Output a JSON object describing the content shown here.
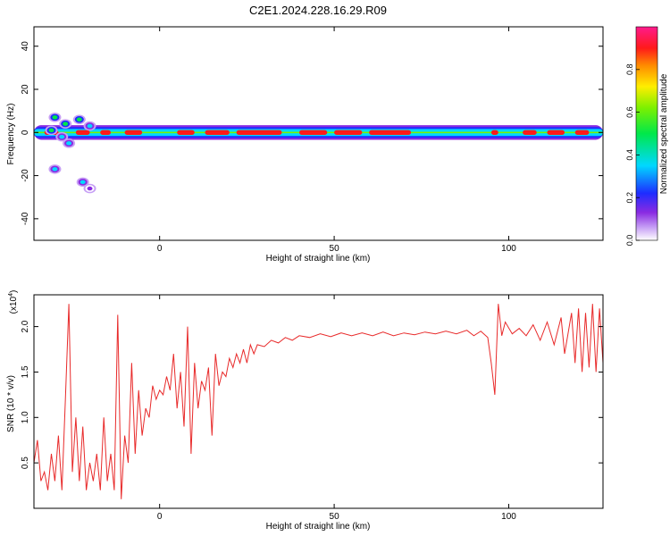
{
  "title": "C2E1.2024.228.16.29.R09",
  "chart_data": [
    {
      "type": "heatmap",
      "xlabel": "Height of straight line (km)",
      "ylabel": "Frequency (Hz)",
      "xlim": [
        -36,
        127
      ],
      "ylim": [
        -50,
        49
      ],
      "xticks": [
        0,
        50,
        100
      ],
      "xtick_labels": [
        "0",
        "50",
        "100"
      ],
      "yticks": [
        -40,
        -20,
        0,
        20,
        40
      ],
      "ytick_labels": [
        "-40",
        "-20",
        "0",
        "20",
        "40"
      ],
      "grid": false,
      "colorbar": {
        "label": "Normalized spectral amplitude",
        "range": [
          0,
          1
        ],
        "ticks": [
          0.0,
          0.2,
          0.4,
          0.6,
          0.8
        ],
        "tick_labels": [
          "0.0",
          "0.2",
          "0.4",
          "0.6",
          "0.8"
        ],
        "colormap": "rainbow (white-purple-blue-cyan-green-yellow-red-magenta)"
      },
      "band": {
        "center_frequency_hz": 0,
        "half_width_hz": 2.5,
        "x_range": [
          -36,
          127
        ],
        "strong_segments_km": [
          [
            -33,
            -29
          ],
          [
            -24,
            -20
          ],
          [
            -17,
            -14
          ],
          [
            -10,
            -5
          ],
          [
            5,
            10
          ],
          [
            13,
            20
          ],
          [
            22,
            35
          ],
          [
            40,
            48
          ],
          [
            50,
            58
          ],
          [
            60,
            72
          ],
          [
            95,
            97
          ],
          [
            104,
            108
          ],
          [
            111,
            116
          ],
          [
            119,
            123
          ]
        ]
      },
      "scattered_blobs": [
        {
          "x": -30,
          "y": 7,
          "amp": 0.6
        },
        {
          "x": -27,
          "y": 4,
          "amp": 0.5
        },
        {
          "x": -31,
          "y": 1,
          "amp": 0.5
        },
        {
          "x": -28,
          "y": -2,
          "amp": 0.4
        },
        {
          "x": -26,
          "y": -5,
          "amp": 0.4
        },
        {
          "x": -23,
          "y": 6,
          "amp": 0.5
        },
        {
          "x": -20,
          "y": 3,
          "amp": 0.4
        },
        {
          "x": -30,
          "y": -17,
          "amp": 0.4
        },
        {
          "x": -22,
          "y": -23,
          "amp": 0.4
        },
        {
          "x": -20,
          "y": -26,
          "amp": 0.15
        }
      ]
    },
    {
      "type": "line",
      "xlabel": "Height of straight line (km)",
      "ylabel": "SNR (10 * v/v)",
      "y_multiplier_label": "(x10",
      "y_multiplier_exponent": "4",
      "y_multiplier_close": ")",
      "xlim": [
        -36,
        127
      ],
      "ylim": [
        0,
        2.35
      ],
      "xticks": [
        0,
        50,
        100
      ],
      "xtick_labels": [
        "0",
        "50",
        "100"
      ],
      "yticks": [
        0.5,
        1.0,
        1.5,
        2.0
      ],
      "ytick_labels": [
        "0.5",
        "1.0",
        "1.5",
        "2.0"
      ],
      "grid": false,
      "series": [
        {
          "color": "#e82a2a",
          "points": [
            [
              -36,
              0.5
            ],
            [
              -35,
              0.75
            ],
            [
              -34,
              0.3
            ],
            [
              -33,
              0.4
            ],
            [
              -32,
              0.2
            ],
            [
              -31,
              0.6
            ],
            [
              -30,
              0.3
            ],
            [
              -29,
              0.8
            ],
            [
              -28,
              0.2
            ],
            [
              -27,
              1.2
            ],
            [
              -26,
              2.25
            ],
            [
              -25,
              0.4
            ],
            [
              -24,
              1.0
            ],
            [
              -23,
              0.3
            ],
            [
              -22,
              0.9
            ],
            [
              -21,
              0.2
            ],
            [
              -20,
              0.5
            ],
            [
              -19,
              0.3
            ],
            [
              -18,
              0.6
            ],
            [
              -17,
              0.2
            ],
            [
              -16,
              1.0
            ],
            [
              -15,
              0.3
            ],
            [
              -14,
              0.6
            ],
            [
              -13,
              0.2
            ],
            [
              -12,
              2.13
            ],
            [
              -11,
              0.1
            ],
            [
              -10,
              0.8
            ],
            [
              -9,
              0.5
            ],
            [
              -8,
              1.6
            ],
            [
              -7,
              0.6
            ],
            [
              -6,
              1.3
            ],
            [
              -5,
              0.8
            ],
            [
              -4,
              1.1
            ],
            [
              -3,
              1.0
            ],
            [
              -2,
              1.35
            ],
            [
              -1,
              1.2
            ],
            [
              0,
              1.3
            ],
            [
              1,
              1.25
            ],
            [
              2,
              1.45
            ],
            [
              3,
              1.3
            ],
            [
              4,
              1.7
            ],
            [
              5,
              1.1
            ],
            [
              6,
              1.5
            ],
            [
              7,
              0.9
            ],
            [
              8,
              2.0
            ],
            [
              9,
              0.6
            ],
            [
              10,
              1.6
            ],
            [
              11,
              1.1
            ],
            [
              12,
              1.4
            ],
            [
              13,
              1.3
            ],
            [
              14,
              1.55
            ],
            [
              15,
              0.8
            ],
            [
              16,
              1.7
            ],
            [
              17,
              1.35
            ],
            [
              18,
              1.5
            ],
            [
              19,
              1.45
            ],
            [
              20,
              1.65
            ],
            [
              21,
              1.55
            ],
            [
              22,
              1.7
            ],
            [
              23,
              1.6
            ],
            [
              24,
              1.75
            ],
            [
              25,
              1.6
            ],
            [
              26,
              1.8
            ],
            [
              27,
              1.7
            ],
            [
              28,
              1.8
            ],
            [
              30,
              1.78
            ],
            [
              32,
              1.85
            ],
            [
              34,
              1.82
            ],
            [
              36,
              1.88
            ],
            [
              38,
              1.85
            ],
            [
              40,
              1.9
            ],
            [
              43,
              1.88
            ],
            [
              46,
              1.92
            ],
            [
              49,
              1.89
            ],
            [
              52,
              1.93
            ],
            [
              55,
              1.9
            ],
            [
              58,
              1.93
            ],
            [
              61,
              1.9
            ],
            [
              64,
              1.94
            ],
            [
              67,
              1.9
            ],
            [
              70,
              1.93
            ],
            [
              73,
              1.91
            ],
            [
              76,
              1.94
            ],
            [
              79,
              1.92
            ],
            [
              82,
              1.95
            ],
            [
              85,
              1.92
            ],
            [
              88,
              1.96
            ],
            [
              90,
              1.9
            ],
            [
              92,
              1.95
            ],
            [
              94,
              1.88
            ],
            [
              95,
              1.6
            ],
            [
              96,
              1.25
            ],
            [
              97,
              2.25
            ],
            [
              98,
              1.9
            ],
            [
              99,
              2.05
            ],
            [
              101,
              1.92
            ],
            [
              103,
              1.98
            ],
            [
              105,
              1.9
            ],
            [
              107,
              2.02
            ],
            [
              109,
              1.85
            ],
            [
              111,
              2.05
            ],
            [
              113,
              1.8
            ],
            [
              115,
              2.1
            ],
            [
              116,
              1.7
            ],
            [
              118,
              2.15
            ],
            [
              119,
              1.6
            ],
            [
              120,
              2.2
            ],
            [
              121,
              1.5
            ],
            [
              122,
              2.15
            ],
            [
              123,
              1.55
            ],
            [
              124,
              2.25
            ],
            [
              125,
              1.5
            ],
            [
              126,
              2.2
            ],
            [
              127,
              1.6
            ]
          ]
        }
      ]
    }
  ]
}
